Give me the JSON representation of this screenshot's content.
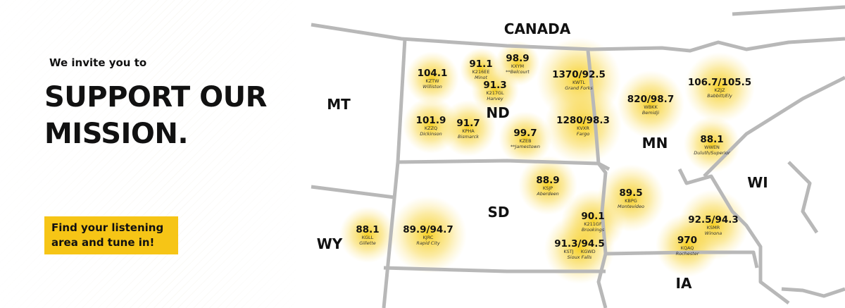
{
  "left": {
    "invite": "We invite you to",
    "headline_line1": "SUPPORT OUR",
    "headline_line2": "MISSION.",
    "cta_line1": "Find your listening",
    "cta_line2": "area and tune in!",
    "cta_color": "#f6c516"
  },
  "states": [
    "CANADA",
    "MT",
    "ND",
    "MN",
    "WI",
    "SD",
    "WY",
    "IA"
  ],
  "stations": [
    {
      "freq": "104.1",
      "call": "KZTW",
      "city": "Williston"
    },
    {
      "freq": "91.1",
      "call": "K216EE",
      "city": "Minot"
    },
    {
      "freq": "98.9",
      "call": "KXYM",
      "city": "**Belcourt"
    },
    {
      "freq": "91.3",
      "call": "K217GL",
      "city": "Harvey"
    },
    {
      "freq": "1370/92.5",
      "call": "KWTL",
      "city": "Grand Forks"
    },
    {
      "freq": "101.9",
      "call": "KZZQ",
      "city": "Dickinson"
    },
    {
      "freq": "91.7",
      "call": "KPHA",
      "city": "Bismarck"
    },
    {
      "freq": "99.7",
      "call": "KZEB",
      "city": "**Jamestown"
    },
    {
      "freq": "1280/98.3",
      "call": "KVXR",
      "city": "Fargo"
    },
    {
      "freq": "820/98.7",
      "call": "WBKK",
      "city": "Bemidji"
    },
    {
      "freq": "106.7/105.5",
      "call": "KZJZ",
      "city": "Babbitt/Ely"
    },
    {
      "freq": "88.1",
      "call": "WWEN",
      "city": "Duluth/Superior"
    },
    {
      "freq": "88.9",
      "call": "KSJP",
      "city": "Aberdeen"
    },
    {
      "freq": "89.5",
      "call": "KBPG",
      "city": "Montevideo"
    },
    {
      "freq": "90.1",
      "call": "K211GF",
      "city": "Brookings"
    },
    {
      "freq": "91.3/94.5",
      "call": "KSTJ     KGWD",
      "city": "Sioux Falls"
    },
    {
      "freq": "92.5/94.3",
      "call": "KSMR",
      "city": "Winona"
    },
    {
      "freq": "970",
      "call": "KQAQ",
      "city": "Rochester"
    },
    {
      "freq": "88.1",
      "call": "KGLL",
      "city": "Gillette"
    },
    {
      "freq": "89.9/94.7",
      "call": "KJRC",
      "city": "Rapid City"
    }
  ],
  "colors": {
    "glow": "#f5c800",
    "border": "#b8b8b8"
  }
}
